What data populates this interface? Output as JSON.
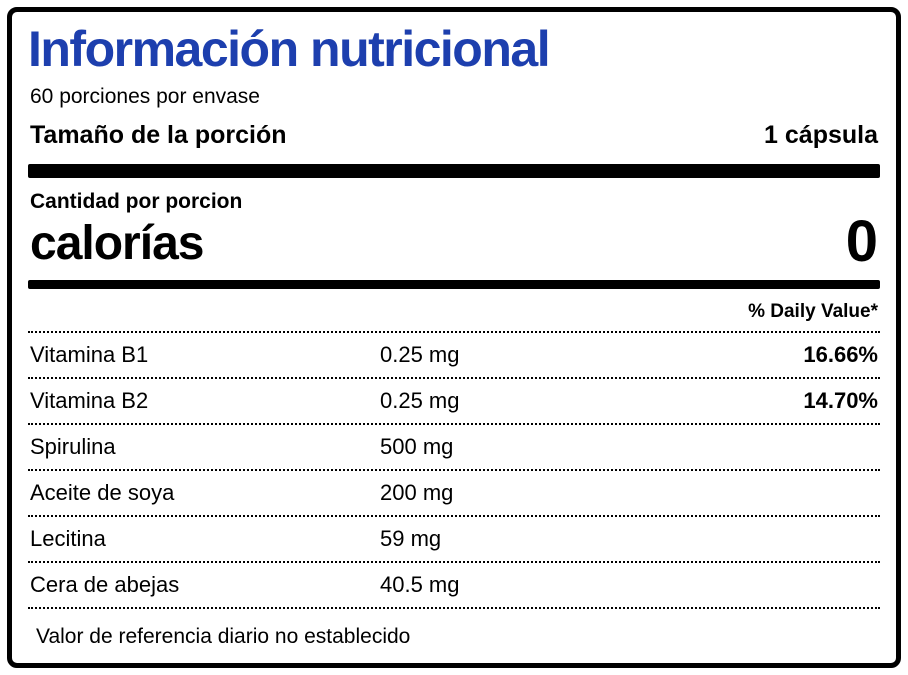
{
  "label": {
    "title_color": "#1d3fae",
    "title": "Información nutricional",
    "servings": "60 porciones por envase",
    "serving_size": {
      "label": "Tamaño de la porción",
      "value": "1 cápsula"
    },
    "amount_per_serving": "Cantidad por porcion",
    "calories": {
      "label": "calorías",
      "value": "0"
    },
    "daily_value_header": "% Daily Value*",
    "rows": [
      {
        "name": "Vitamina B1",
        "amount": "0.25 mg",
        "dv": "16.66%"
      },
      {
        "name": "Vitamina B2",
        "amount": "0.25 mg",
        "dv": "14.70%"
      },
      {
        "name": "Spirulina",
        "amount": "500 mg",
        "dv": ""
      },
      {
        "name": "Aceite de soya",
        "amount": "200 mg",
        "dv": ""
      },
      {
        "name": "Lecitina",
        "amount": "59 mg",
        "dv": ""
      },
      {
        "name": "Cera de abejas",
        "amount": "40.5 mg",
        "dv": ""
      }
    ],
    "footnote": "Valor de referencia diario no establecido"
  }
}
